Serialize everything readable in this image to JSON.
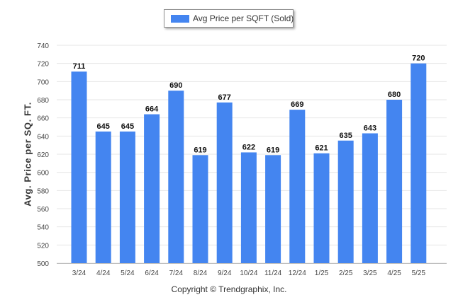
{
  "chart_data": {
    "type": "bar",
    "legend": "Avg Price per SQFT (Sold)",
    "ylabel": "Avg. Price per SQ. FT.",
    "categories": [
      "3/24",
      "4/24",
      "5/24",
      "6/24",
      "7/24",
      "8/24",
      "9/24",
      "10/24",
      "11/24",
      "12/24",
      "1/25",
      "2/25",
      "3/25",
      "4/25",
      "5/25"
    ],
    "values": [
      711,
      645,
      645,
      664,
      690,
      619,
      677,
      622,
      619,
      669,
      621,
      635,
      643,
      680,
      720
    ],
    "ylim": [
      500,
      740
    ],
    "yticks": [
      500,
      520,
      540,
      560,
      580,
      600,
      620,
      640,
      660,
      680,
      700,
      720,
      740
    ],
    "grid": true,
    "legend_position": "top-center",
    "bar_color": "#4485f0"
  },
  "footer": {
    "copyright": "Copyright © Trendgraphix, Inc."
  }
}
